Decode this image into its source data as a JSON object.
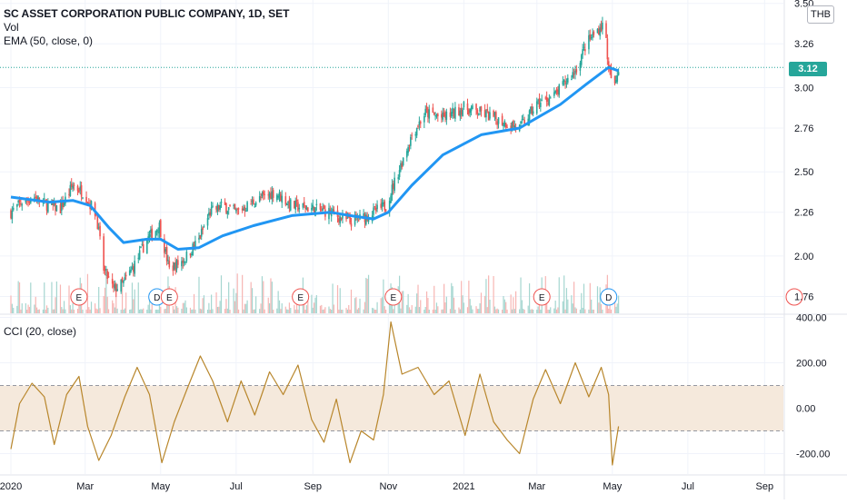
{
  "header": {
    "symbol_title": "SC ASSET CORPORATION PUBLIC COMPANY, 1D, SET",
    "indicator_vol": "Vol",
    "indicator_ema": "EMA (50, close, 0)",
    "indicator_cci": "CCI (20, close)",
    "currency": "THB",
    "last_price": "3.12"
  },
  "colors": {
    "up": "#26a69a",
    "down": "#ef5350",
    "ema": "#2196f3",
    "cci": "#b8862b",
    "cci_band": "#f5e9dc",
    "last_price": "#26a69a"
  },
  "chart_data": [
    {
      "type": "candlestick",
      "name": "price",
      "x_axis": {
        "ticks": [
          "2020",
          "Mar",
          "May",
          "Jul",
          "Sep",
          "Nov",
          "2021",
          "Mar",
          "May",
          "Jul",
          "Sep"
        ],
        "start": "2020-01-01",
        "end": "2021-09-25"
      },
      "y_axis": {
        "ticks": [
          "1.76",
          "2.00",
          "2.26",
          "2.50",
          "2.76",
          "3.00",
          "3.26",
          "3.50"
        ],
        "ylim": [
          1.66,
          3.52
        ]
      },
      "close_path": [
        [
          "2020-01-01",
          2.26
        ],
        [
          "2020-01-10",
          2.32
        ],
        [
          "2020-01-20",
          2.35
        ],
        [
          "2020-01-31",
          2.3
        ],
        [
          "2020-02-10",
          2.28
        ],
        [
          "2020-02-20",
          2.42
        ],
        [
          "2020-02-28",
          2.38
        ],
        [
          "2020-03-10",
          2.25
        ],
        [
          "2020-03-16",
          1.92
        ],
        [
          "2020-03-24",
          1.8
        ],
        [
          "2020-04-01",
          1.84
        ],
        [
          "2020-04-10",
          1.95
        ],
        [
          "2020-04-20",
          2.1
        ],
        [
          "2020-04-30",
          2.18
        ],
        [
          "2020-05-08",
          1.92
        ],
        [
          "2020-05-20",
          1.98
        ],
        [
          "2020-06-01",
          2.1
        ],
        [
          "2020-06-10",
          2.26
        ],
        [
          "2020-06-20",
          2.3
        ],
        [
          "2020-07-01",
          2.26
        ],
        [
          "2020-07-15",
          2.32
        ],
        [
          "2020-08-01",
          2.38
        ],
        [
          "2020-08-15",
          2.3
        ],
        [
          "2020-09-01",
          2.28
        ],
        [
          "2020-09-15",
          2.26
        ],
        [
          "2020-10-01",
          2.2
        ],
        [
          "2020-10-15",
          2.24
        ],
        [
          "2020-10-30",
          2.3
        ],
        [
          "2020-11-10",
          2.52
        ],
        [
          "2020-11-20",
          2.72
        ],
        [
          "2020-12-01",
          2.85
        ],
        [
          "2020-12-15",
          2.82
        ],
        [
          "2021-01-01",
          2.88
        ],
        [
          "2021-01-15",
          2.85
        ],
        [
          "2021-02-01",
          2.8
        ],
        [
          "2021-02-15",
          2.76
        ],
        [
          "2021-03-01",
          2.9
        ],
        [
          "2021-03-15",
          2.95
        ],
        [
          "2021-04-01",
          3.1
        ],
        [
          "2021-04-10",
          3.26
        ],
        [
          "2021-04-20",
          3.35
        ],
        [
          "2021-04-25",
          3.38
        ],
        [
          "2021-04-28",
          3.1
        ],
        [
          "2021-05-03",
          3.0
        ],
        [
          "2021-05-06",
          3.12
        ]
      ]
    },
    {
      "type": "line",
      "name": "EMA (50, close, 0)",
      "points": [
        [
          "2020-01-01",
          2.35
        ],
        [
          "2020-02-01",
          2.32
        ],
        [
          "2020-02-20",
          2.33
        ],
        [
          "2020-03-05",
          2.3
        ],
        [
          "2020-03-20",
          2.17
        ],
        [
          "2020-04-01",
          2.08
        ],
        [
          "2020-04-20",
          2.1
        ],
        [
          "2020-05-01",
          2.1
        ],
        [
          "2020-05-15",
          2.04
        ],
        [
          "2020-06-01",
          2.05
        ],
        [
          "2020-06-20",
          2.12
        ],
        [
          "2020-07-15",
          2.18
        ],
        [
          "2020-08-15",
          2.24
        ],
        [
          "2020-09-15",
          2.26
        ],
        [
          "2020-10-01",
          2.24
        ],
        [
          "2020-10-20",
          2.22
        ],
        [
          "2020-11-01",
          2.26
        ],
        [
          "2020-11-20",
          2.42
        ],
        [
          "2020-12-15",
          2.6
        ],
        [
          "2021-01-15",
          2.72
        ],
        [
          "2021-02-15",
          2.76
        ],
        [
          "2021-03-01",
          2.82
        ],
        [
          "2021-03-20",
          2.9
        ],
        [
          "2021-04-10",
          3.02
        ],
        [
          "2021-04-28",
          3.12
        ],
        [
          "2021-05-06",
          3.1
        ]
      ]
    },
    {
      "type": "bar",
      "name": "Vol",
      "note_dates": [
        "E",
        "D",
        "E",
        "E",
        "E",
        "E",
        "D"
      ],
      "markers": [
        {
          "label": "E",
          "date": "2020-02-25",
          "kind": "earnings"
        },
        {
          "label": "D",
          "date": "2020-04-28",
          "kind": "dividend"
        },
        {
          "label": "E",
          "date": "2020-05-08",
          "kind": "earnings"
        },
        {
          "label": "E",
          "date": "2020-08-22",
          "kind": "earnings"
        },
        {
          "label": "E",
          "date": "2020-11-05",
          "kind": "earnings"
        },
        {
          "label": "E",
          "date": "2021-03-05",
          "kind": "earnings"
        },
        {
          "label": "D",
          "date": "2021-04-28",
          "kind": "dividend"
        },
        {
          "label": "",
          "date": "2021-09-25",
          "kind": "earnings"
        }
      ]
    },
    {
      "type": "line",
      "name": "CCI (20, close)",
      "y_axis": {
        "ticks": [
          "400.00",
          "200.00",
          "0.00",
          "-200.00"
        ],
        "ylim": [
          -290,
          410
        ]
      },
      "bands": [
        -100,
        100
      ],
      "points": [
        [
          "2020-01-01",
          -180
        ],
        [
          "2020-01-08",
          20
        ],
        [
          "2020-01-18",
          110
        ],
        [
          "2020-01-28",
          50
        ],
        [
          "2020-02-05",
          -160
        ],
        [
          "2020-02-15",
          60
        ],
        [
          "2020-02-25",
          140
        ],
        [
          "2020-03-03",
          -80
        ],
        [
          "2020-03-12",
          -230
        ],
        [
          "2020-03-22",
          -120
        ],
        [
          "2020-04-02",
          50
        ],
        [
          "2020-04-12",
          180
        ],
        [
          "2020-04-22",
          60
        ],
        [
          "2020-05-02",
          -240
        ],
        [
          "2020-05-12",
          -60
        ],
        [
          "2020-05-22",
          80
        ],
        [
          "2020-06-02",
          230
        ],
        [
          "2020-06-12",
          120
        ],
        [
          "2020-06-24",
          -60
        ],
        [
          "2020-07-05",
          120
        ],
        [
          "2020-07-16",
          -30
        ],
        [
          "2020-07-28",
          160
        ],
        [
          "2020-08-08",
          60
        ],
        [
          "2020-08-20",
          190
        ],
        [
          "2020-08-31",
          -50
        ],
        [
          "2020-09-10",
          -150
        ],
        [
          "2020-09-20",
          40
        ],
        [
          "2020-10-01",
          -240
        ],
        [
          "2020-10-10",
          -100
        ],
        [
          "2020-10-20",
          -140
        ],
        [
          "2020-10-28",
          60
        ],
        [
          "2020-11-03",
          380
        ],
        [
          "2020-11-12",
          150
        ],
        [
          "2020-11-25",
          180
        ],
        [
          "2020-12-08",
          60
        ],
        [
          "2020-12-20",
          120
        ],
        [
          "2021-01-02",
          -120
        ],
        [
          "2021-01-14",
          150
        ],
        [
          "2021-01-25",
          -60
        ],
        [
          "2021-02-05",
          -140
        ],
        [
          "2021-02-15",
          -200
        ],
        [
          "2021-02-26",
          40
        ],
        [
          "2021-03-08",
          170
        ],
        [
          "2021-03-20",
          20
        ],
        [
          "2021-04-01",
          200
        ],
        [
          "2021-04-12",
          50
        ],
        [
          "2021-04-22",
          180
        ],
        [
          "2021-04-28",
          60
        ],
        [
          "2021-05-01",
          -250
        ],
        [
          "2021-05-06",
          -80
        ]
      ]
    }
  ]
}
